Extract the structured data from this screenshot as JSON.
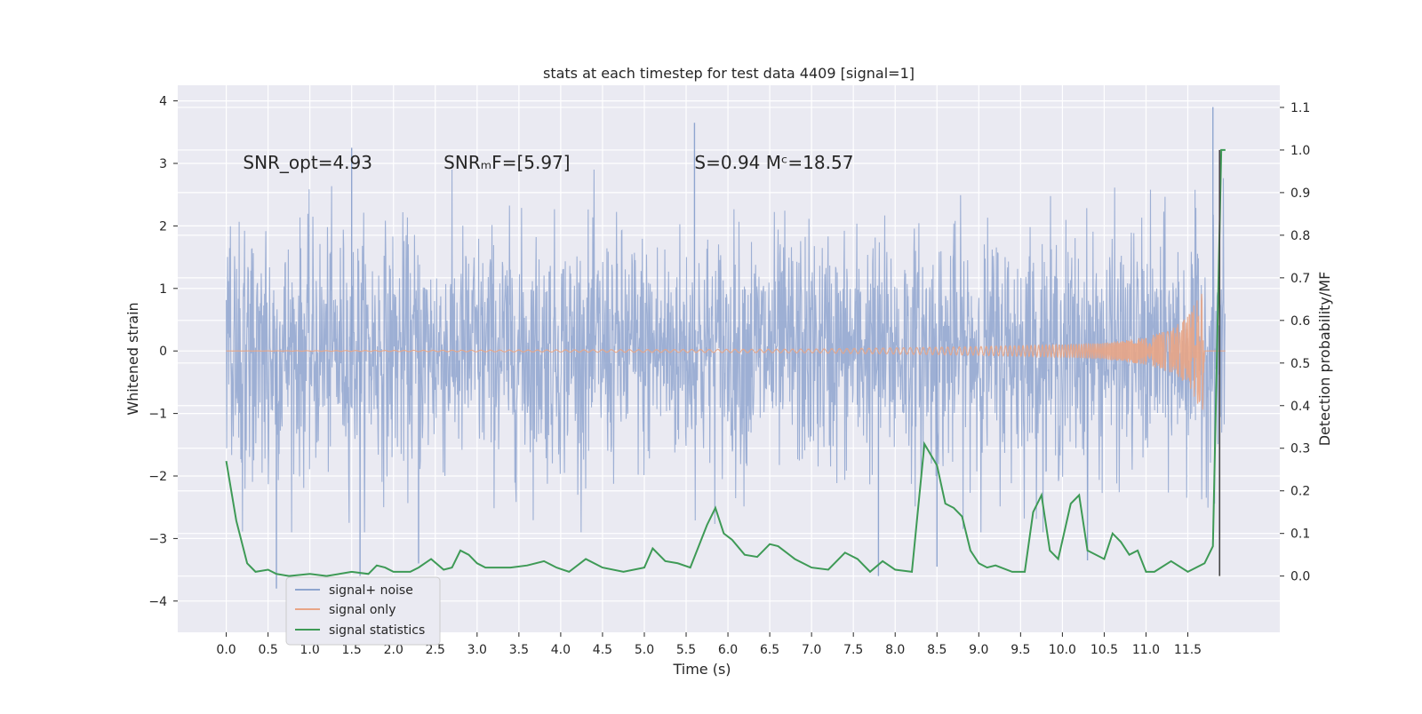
{
  "chart_data": {
    "type": "line",
    "title": "stats at each timestep for test data 4409 [signal=1]",
    "xlabel": "Time (s)",
    "ylabel": "Whitened strain",
    "y2label": "Detection probability/MF",
    "xlim": [
      -0.58,
      12.6
    ],
    "ylim": [
      -4.5,
      4.25
    ],
    "y2lim": [
      -0.132,
      1.152
    ],
    "x_ticks": [
      "0.0",
      "0.5",
      "1.0",
      "1.5",
      "2.0",
      "2.5",
      "3.0",
      "3.5",
      "4.0",
      "4.5",
      "5.0",
      "5.5",
      "6.0",
      "6.5",
      "7.0",
      "7.5",
      "8.0",
      "8.5",
      "9.0",
      "9.5",
      "10.0",
      "10.5",
      "11.0",
      "11.5"
    ],
    "y_ticks": [
      "4",
      "3",
      "2",
      "1",
      "0",
      "−1",
      "−2",
      "−3",
      "−4"
    ],
    "y2_ticks": [
      "1.1",
      "1.0",
      "0.9",
      "0.8",
      "0.7",
      "0.6",
      "0.5",
      "0.4",
      "0.3",
      "0.2",
      "0.1",
      "0.0"
    ],
    "grid": true,
    "legend_position": "lower-left",
    "annotations": [
      {
        "text": "SNR_opt=4.93",
        "x": 0.2,
        "y": 3.0
      },
      {
        "text": "SNRₘF=[5.97]",
        "x": 2.6,
        "y": 3.0
      },
      {
        "text": "S=0.94   Mᶜ=18.57",
        "x": 5.6,
        "y": 3.0
      }
    ],
    "vertical_line_x": 11.88,
    "series": [
      {
        "name": "signal+ noise",
        "color": "#8fa5cf",
        "axis": "left",
        "x_range": [
          0.0,
          11.95
        ],
        "typical_range": [
          -1.5,
          1.5
        ],
        "extremes": [
          {
            "x": 0.6,
            "y": -3.8
          },
          {
            "x": 1.5,
            "y": 3.25
          },
          {
            "x": 1.6,
            "y": -3.6
          },
          {
            "x": 2.3,
            "y": -3.4
          },
          {
            "x": 5.6,
            "y": 3.65
          },
          {
            "x": 7.8,
            "y": -3.6
          },
          {
            "x": 8.5,
            "y": -3.45
          },
          {
            "x": 10.3,
            "y": -3.35
          },
          {
            "x": 11.8,
            "y": 3.9
          }
        ]
      },
      {
        "name": "signal only",
        "color": "#e8a586",
        "axis": "left",
        "x": [
          0.0,
          7.0,
          8.0,
          9.0,
          10.0,
          10.5,
          11.0,
          11.3,
          11.5,
          11.62,
          11.68,
          11.7
        ],
        "amplitude": [
          0.0,
          0.03,
          0.05,
          0.07,
          0.1,
          0.13,
          0.22,
          0.35,
          0.55,
          0.85,
          0.95,
          0.0
        ]
      },
      {
        "name": "signal statistics",
        "color": "#3e9a56",
        "axis": "right",
        "x": [
          0.0,
          0.12,
          0.25,
          0.35,
          0.5,
          0.6,
          0.75,
          1.0,
          1.2,
          1.5,
          1.7,
          1.8,
          1.9,
          2.0,
          2.2,
          2.3,
          2.45,
          2.6,
          2.7,
          2.8,
          2.9,
          3.0,
          3.1,
          3.2,
          3.4,
          3.6,
          3.8,
          3.95,
          4.1,
          4.3,
          4.5,
          4.75,
          5.0,
          5.1,
          5.25,
          5.4,
          5.55,
          5.75,
          5.85,
          5.95,
          6.05,
          6.2,
          6.35,
          6.5,
          6.6,
          6.8,
          7.0,
          7.2,
          7.4,
          7.55,
          7.7,
          7.85,
          8.0,
          8.2,
          8.35,
          8.5,
          8.6,
          8.7,
          8.8,
          8.9,
          9.0,
          9.1,
          9.2,
          9.4,
          9.55,
          9.65,
          9.75,
          9.85,
          9.95,
          10.1,
          10.2,
          10.3,
          10.5,
          10.6,
          10.7,
          10.8,
          10.9,
          11.0,
          11.1,
          11.3,
          11.5,
          11.7,
          11.8,
          11.9,
          11.95
        ],
        "values": [
          0.27,
          0.13,
          0.03,
          0.01,
          0.015,
          0.005,
          0.0,
          0.005,
          0.0,
          0.01,
          0.005,
          0.025,
          0.02,
          0.01,
          0.01,
          0.02,
          0.04,
          0.015,
          0.02,
          0.06,
          0.05,
          0.03,
          0.02,
          0.02,
          0.02,
          0.025,
          0.035,
          0.02,
          0.01,
          0.04,
          0.02,
          0.01,
          0.02,
          0.065,
          0.035,
          0.03,
          0.02,
          0.12,
          0.16,
          0.1,
          0.085,
          0.05,
          0.045,
          0.075,
          0.07,
          0.04,
          0.02,
          0.015,
          0.055,
          0.04,
          0.01,
          0.035,
          0.015,
          0.01,
          0.31,
          0.26,
          0.17,
          0.16,
          0.14,
          0.06,
          0.03,
          0.02,
          0.025,
          0.01,
          0.01,
          0.15,
          0.19,
          0.06,
          0.04,
          0.17,
          0.19,
          0.06,
          0.04,
          0.1,
          0.08,
          0.05,
          0.06,
          0.01,
          0.01,
          0.035,
          0.01,
          0.03,
          0.07,
          1.0,
          1.0
        ]
      }
    ]
  }
}
